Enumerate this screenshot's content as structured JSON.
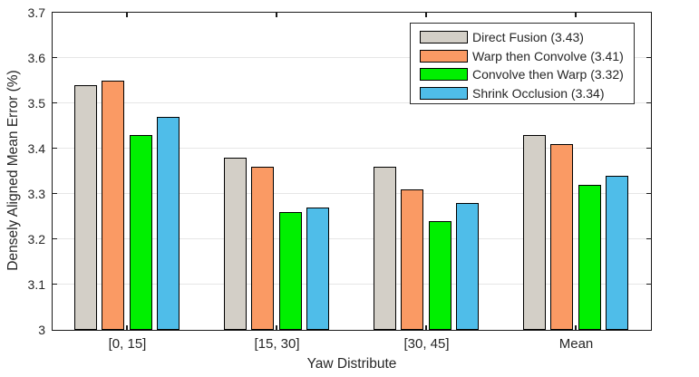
{
  "chart_data": {
    "type": "bar",
    "title": "",
    "xlabel": "Yaw Distribute",
    "ylabel": "Densely Aligned Mean Error (%)",
    "categories": [
      "[0, 15]",
      "[15, 30]",
      "[30, 45]",
      "Mean"
    ],
    "series": [
      {
        "name": "Direct Fusion (3.43)",
        "color": "#D3CFC7",
        "values": [
          3.54,
          3.38,
          3.36,
          3.43
        ]
      },
      {
        "name": "Warp then Convolve (3.41)",
        "color": "#FA9A64",
        "values": [
          3.55,
          3.36,
          3.31,
          3.41
        ]
      },
      {
        "name": "Convolve then Warp (3.32)",
        "color": "#00F000",
        "values": [
          3.43,
          3.26,
          3.24,
          3.32
        ]
      },
      {
        "name": "Shrink Occlusion (3.34)",
        "color": "#4FBDE9",
        "values": [
          3.47,
          3.27,
          3.28,
          3.34
        ]
      }
    ],
    "ylim": [
      3.0,
      3.7
    ],
    "ytick_values": [
      3.0,
      3.1,
      3.2,
      3.3,
      3.4,
      3.5,
      3.6,
      3.7
    ],
    "ytick_labels": [
      "3",
      "3.1",
      "3.2",
      "3.3",
      "3.4",
      "3.5",
      "3.6",
      "3.7"
    ],
    "grid": true,
    "legend_position": "top-right",
    "colors": {
      "grid": "#E6E6E6",
      "axis": "#1A1A1A",
      "text": "#262626",
      "background": "#FFFFFF"
    }
  }
}
